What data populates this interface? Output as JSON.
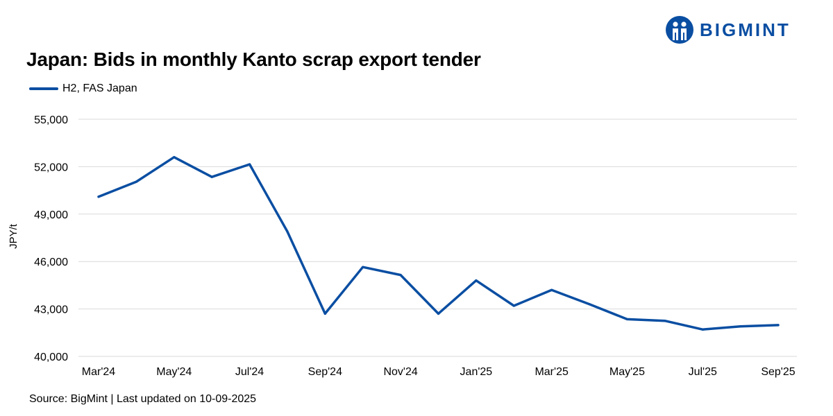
{
  "title": "Japan: Bids in monthly Kanto scrap export tender",
  "source": "Source: BigMint | Last updated on 10-09-2025",
  "logo": {
    "text": "BIGMINT",
    "icon": "bigmint-logo-icon",
    "color": "#0a4ea2"
  },
  "colors": {
    "series": "#0a4ea2",
    "grid": "#d9d9d9"
  },
  "chart_data": {
    "type": "line",
    "title": "Japan: Bids in monthly Kanto scrap export tender",
    "xlabel": "",
    "ylabel": "JPY/t",
    "ylim": [
      40000,
      55000
    ],
    "yticks": [
      40000,
      43000,
      46000,
      49000,
      52000,
      55000
    ],
    "ytick_labels": [
      "40,000",
      "43,000",
      "46,000",
      "49,000",
      "52,000",
      "55,000"
    ],
    "grid": true,
    "legend_position": "top-left",
    "categories": [
      "Mar'24",
      "Apr'24",
      "May'24",
      "Jun'24",
      "Jul'24",
      "Aug'24",
      "Sep'24",
      "Oct'24",
      "Nov'24",
      "Dec'24",
      "Jan'25",
      "Feb'25",
      "Mar'25",
      "Apr'25",
      "May'25",
      "Jun'25",
      "Jul'25",
      "Aug'25",
      "Sep'25"
    ],
    "xtick_labels": [
      "Mar'24",
      "May'24",
      "Jul'24",
      "Sep'24",
      "Nov'24",
      "Jan'25",
      "Mar'25",
      "May'25",
      "Jul'25",
      "Sep'25"
    ],
    "series": [
      {
        "name": "H2, FAS Japan",
        "color": "#0a4ea2",
        "values": [
          50100,
          51050,
          52600,
          51350,
          52150,
          47900,
          42700,
          45650,
          45150,
          42700,
          44800,
          43200,
          44200,
          43300,
          42350,
          42250,
          41700,
          41900,
          41980
        ]
      }
    ]
  }
}
